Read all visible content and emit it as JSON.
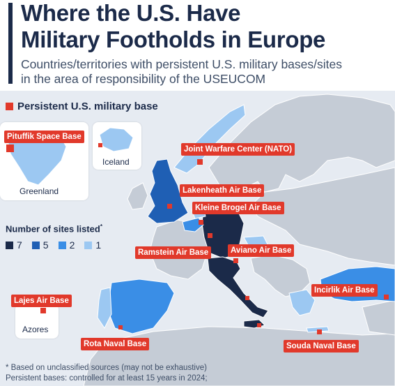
{
  "header": {
    "title_line1": "Where the U.S. Have",
    "title_line2": "Military Footholds in Europe",
    "subtitle_line1": "Countries/territories with persistent U.S. military bases/sites",
    "subtitle_line2": "in the area of responsibility of the USEUCOM"
  },
  "legend": {
    "persistent_label": "Persistent U.S. military base",
    "sites_title": "Number of sites listed",
    "sites_title_mark": "*",
    "levels": [
      {
        "label": "7",
        "color": "#1b2a49"
      },
      {
        "label": "5",
        "color": "#1f5fb4"
      },
      {
        "label": "2",
        "color": "#3a8ee6"
      },
      {
        "label": "1",
        "color": "#9cc8f2"
      }
    ]
  },
  "insets": {
    "greenland": "Greenland",
    "iceland": "Iceland",
    "azores": "Azores"
  },
  "bases": {
    "pituffik": "Pituffik Space Base",
    "joint_warfare": "Joint Warfare Center (NATO)",
    "lakenheath": "Lakenheath Air Base",
    "kleine_brogel": "Kleine Brogel Air Base",
    "ramstein": "Ramstein Air Base",
    "aviano": "Aviano Air Base",
    "lajes": "Lajes Air Base",
    "incirlik": "Incirlik Air Base",
    "rota": "Rota Naval Base",
    "souda": "Souda Naval Base"
  },
  "footnote": {
    "line1": "* Based on unclassified sources (may not be exhaustive)",
    "line2": "Persistent bases: controlled for at least 15 years in 2024;"
  },
  "colors": {
    "accent": "#e1392b",
    "navy": "#1b2a49",
    "land_other": "#c5ccd6",
    "sea": "#e6ebf2"
  }
}
